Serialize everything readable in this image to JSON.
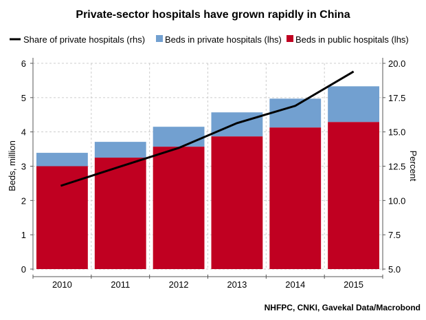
{
  "chart_data": {
    "type": "bar",
    "stacked": true,
    "title": "Private-sector hospitals have grown rapidly in China",
    "categories": [
      "2010",
      "2011",
      "2012",
      "2013",
      "2014",
      "2015"
    ],
    "series": [
      {
        "name": "Beds in public hospitals (lhs)",
        "axis": "left",
        "color": "#c00021",
        "values": [
          3.0,
          3.25,
          3.57,
          3.87,
          4.13,
          4.29
        ]
      },
      {
        "name": "Beds in private hospitals (lhs)",
        "axis": "left",
        "color": "#72a0d0",
        "values": [
          0.39,
          0.46,
          0.58,
          0.7,
          0.84,
          1.04
        ]
      },
      {
        "name": "Share of private hospitals (rhs)",
        "axis": "right",
        "type": "line",
        "color": "#000000",
        "values": [
          11.07,
          12.48,
          13.83,
          15.64,
          16.9,
          19.4
        ]
      }
    ],
    "ylabel": "Beds, million",
    "ylim": [
      0,
      6
    ],
    "yticks": [
      "0",
      "1",
      "2",
      "3",
      "4",
      "5",
      "6"
    ],
    "y2label": "Percent",
    "y2lim": [
      5,
      20
    ],
    "y2ticks": [
      "5.0",
      "7.5",
      "10.0",
      "12.5",
      "15.0",
      "17.5",
      "20.0"
    ],
    "grid": true,
    "legend": "top",
    "source": "NHFPC, CNKI, Gavekal Data/Macrobond"
  }
}
